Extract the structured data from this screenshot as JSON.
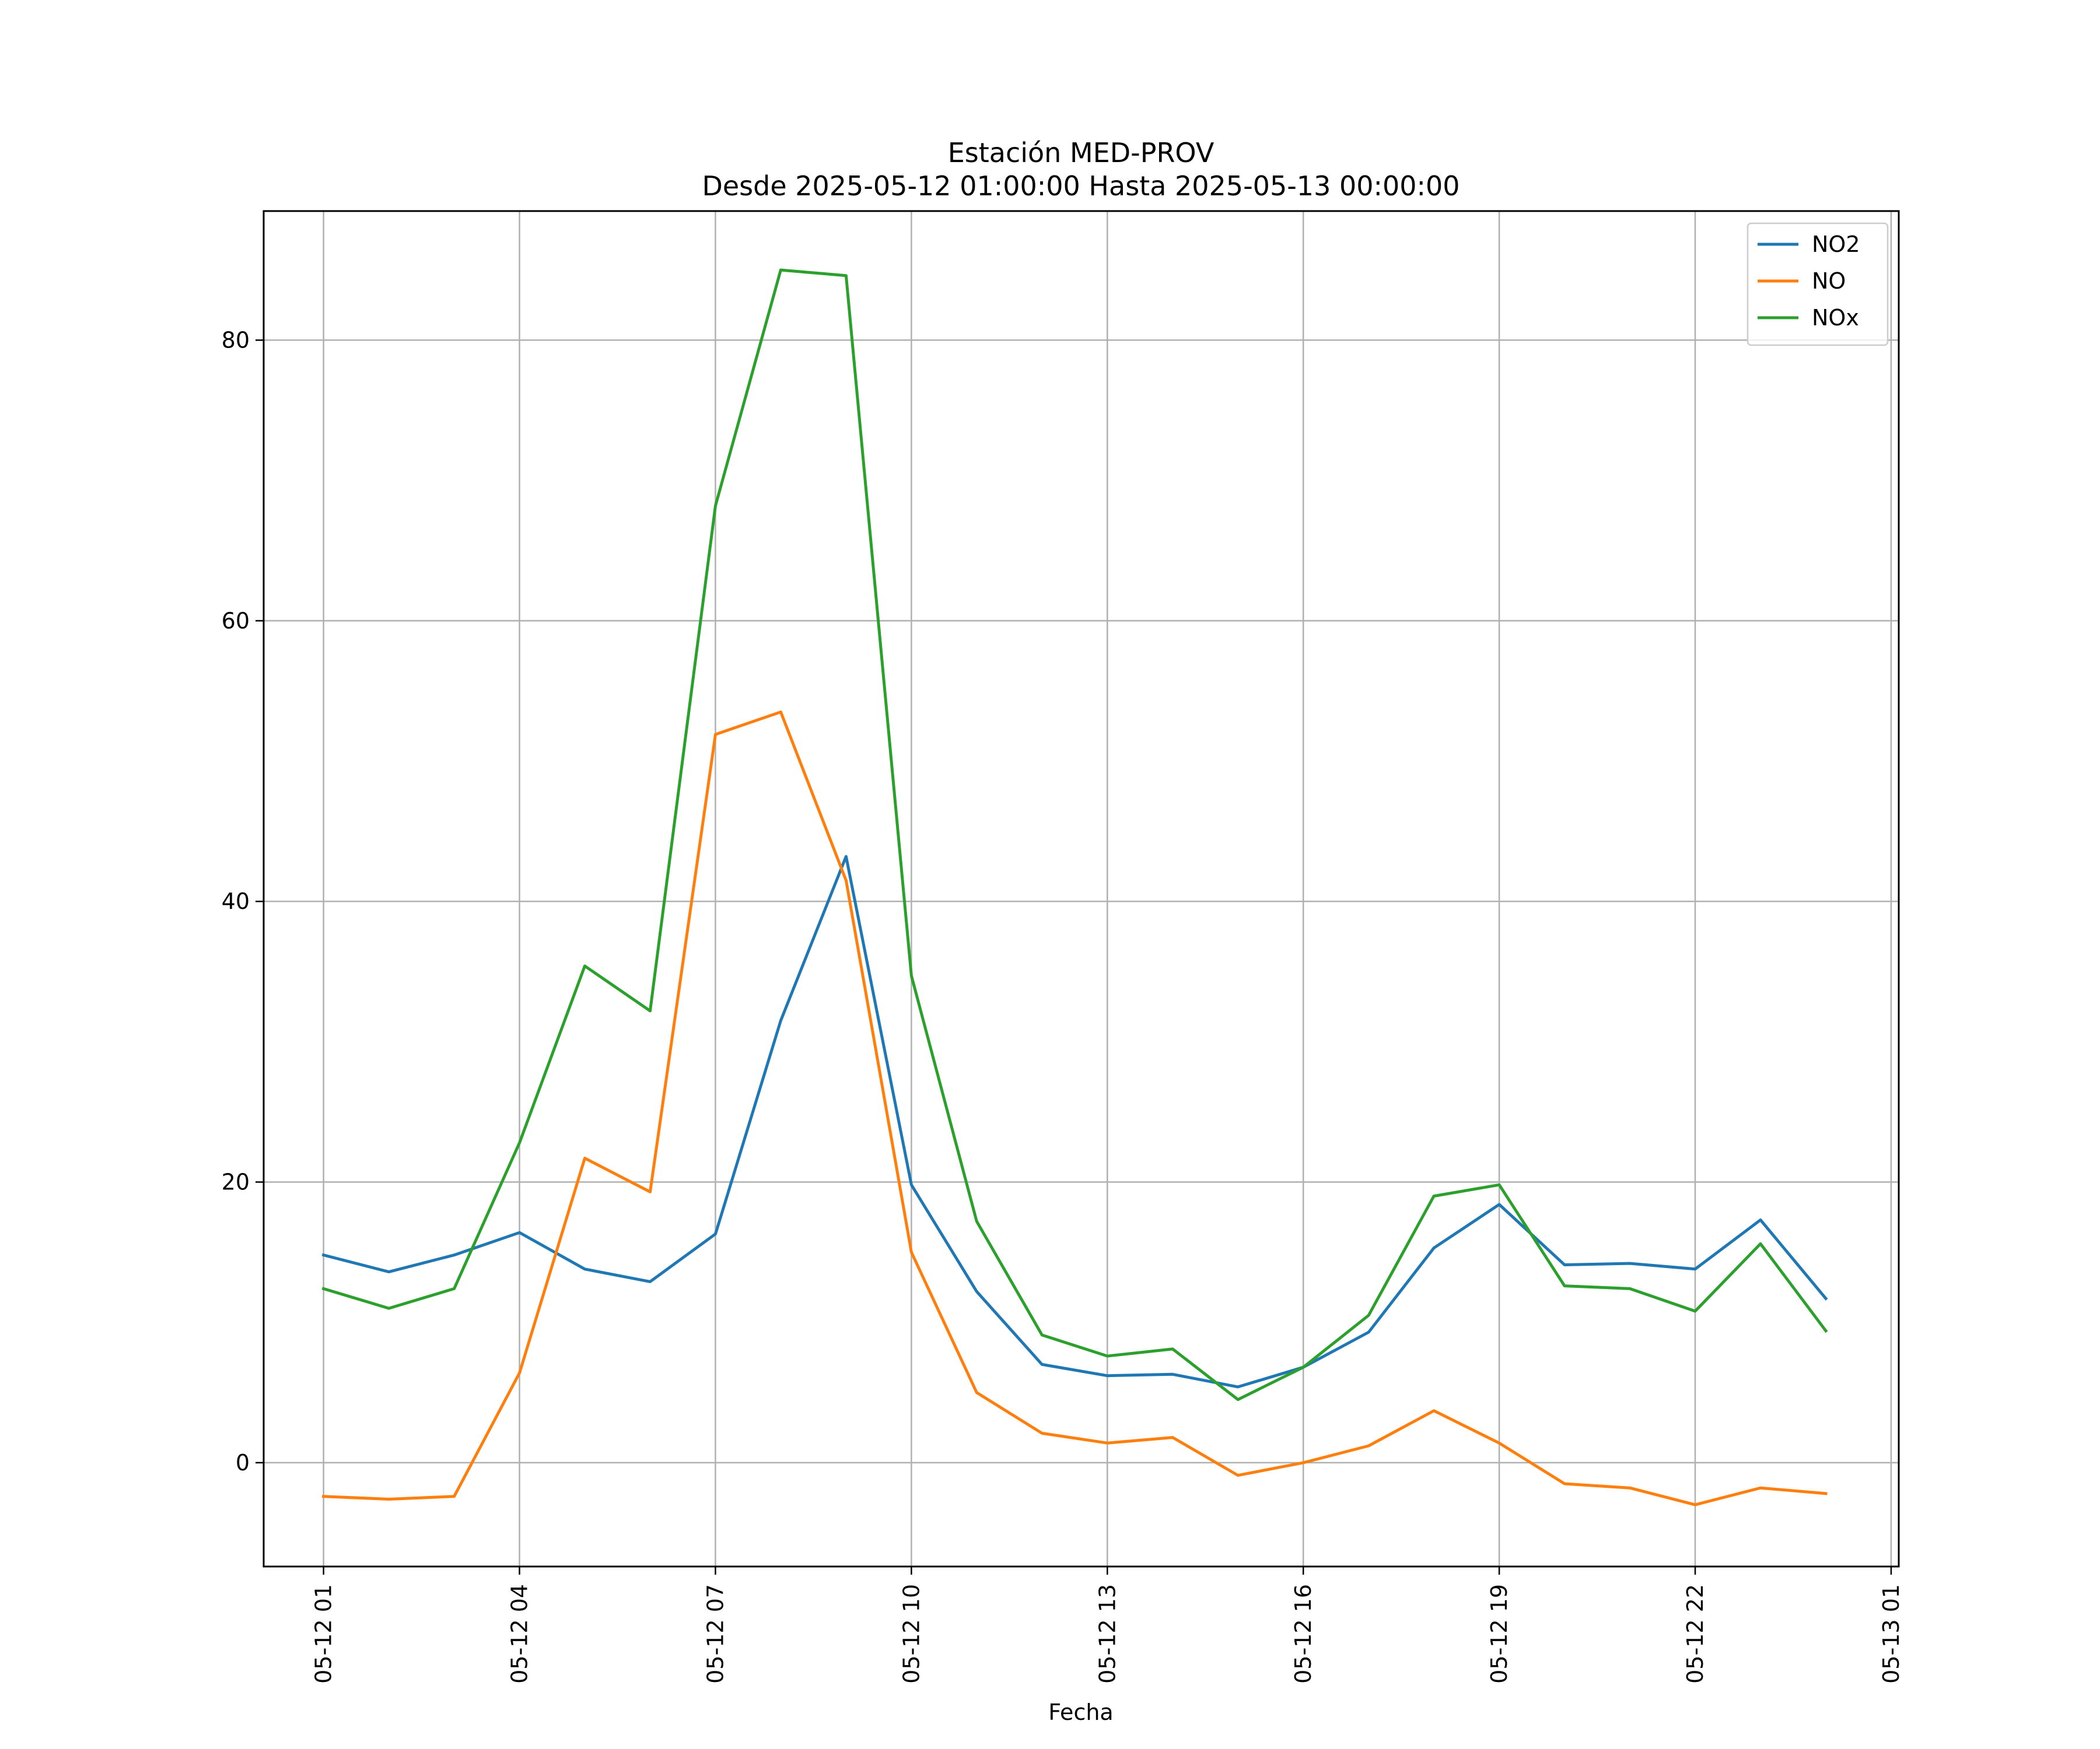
{
  "chart_data": {
    "type": "line",
    "title": "Estación MED-PROV",
    "subtitle": "Desde 2025-05-12 01:00:00 Hasta 2025-05-13 00:00:00",
    "xlabel": "Fecha",
    "ylabel": "",
    "x": [
      "2025-05-12 01:00",
      "2025-05-12 02:00",
      "2025-05-12 03:00",
      "2025-05-12 04:00",
      "2025-05-12 05:00",
      "2025-05-12 06:00",
      "2025-05-12 07:00",
      "2025-05-12 08:00",
      "2025-05-12 09:00",
      "2025-05-12 10:00",
      "2025-05-12 11:00",
      "2025-05-12 12:00",
      "2025-05-12 13:00",
      "2025-05-12 14:00",
      "2025-05-12 15:00",
      "2025-05-12 16:00",
      "2025-05-12 17:00",
      "2025-05-12 18:00",
      "2025-05-12 19:00",
      "2025-05-12 20:00",
      "2025-05-12 21:00",
      "2025-05-12 22:00",
      "2025-05-12 23:00",
      "2025-05-13 00:00"
    ],
    "xlim": [
      "2025-05-12 00:05",
      "2025-05-13 01:07"
    ],
    "ylim": [
      -7.4,
      89.2
    ],
    "x_ticks": [
      {
        "value": "2025-05-12 01:00",
        "label": "05-12 01"
      },
      {
        "value": "2025-05-12 04:00",
        "label": "05-12 04"
      },
      {
        "value": "2025-05-12 07:00",
        "label": "05-12 07"
      },
      {
        "value": "2025-05-12 10:00",
        "label": "05-12 10"
      },
      {
        "value": "2025-05-12 13:00",
        "label": "05-12 13"
      },
      {
        "value": "2025-05-12 16:00",
        "label": "05-12 16"
      },
      {
        "value": "2025-05-12 19:00",
        "label": "05-12 19"
      },
      {
        "value": "2025-05-12 22:00",
        "label": "05-12 22"
      },
      {
        "value": "2025-05-13 01:00",
        "label": "05-13 01"
      }
    ],
    "y_ticks": [
      {
        "value": 0,
        "label": "0"
      },
      {
        "value": 20,
        "label": "20"
      },
      {
        "value": 40,
        "label": "40"
      },
      {
        "value": 60,
        "label": "60"
      },
      {
        "value": 80,
        "label": "80"
      }
    ],
    "grid": true,
    "legend_position": "top-right",
    "series": [
      {
        "name": "NO2",
        "color": "#1f77b4",
        "values": [
          14.8,
          13.6,
          14.8,
          16.4,
          13.8,
          12.9,
          16.3,
          31.5,
          43.2,
          19.8,
          12.2,
          7.0,
          6.2,
          6.3,
          5.4,
          6.8,
          9.3,
          15.3,
          18.4,
          14.1,
          14.2,
          13.8,
          17.3,
          11.7
        ]
      },
      {
        "name": "NO",
        "color": "#ff7f0e",
        "values": [
          -2.4,
          -2.6,
          -2.4,
          6.4,
          21.7,
          19.3,
          51.9,
          53.5,
          41.5,
          15.0,
          5.0,
          2.1,
          1.4,
          1.8,
          -0.9,
          0.0,
          1.2,
          3.7,
          1.4,
          -1.5,
          -1.8,
          -3.0,
          -1.8,
          -2.2
        ]
      },
      {
        "name": "NOx",
        "color": "#2ca02c",
        "values": [
          12.4,
          11.0,
          12.4,
          22.8,
          35.4,
          32.2,
          68.2,
          85.0,
          84.6,
          34.7,
          17.2,
          9.1,
          7.6,
          8.1,
          4.5,
          6.8,
          10.5,
          19.0,
          19.8,
          12.6,
          12.4,
          10.8,
          15.6,
          9.4
        ]
      }
    ]
  }
}
